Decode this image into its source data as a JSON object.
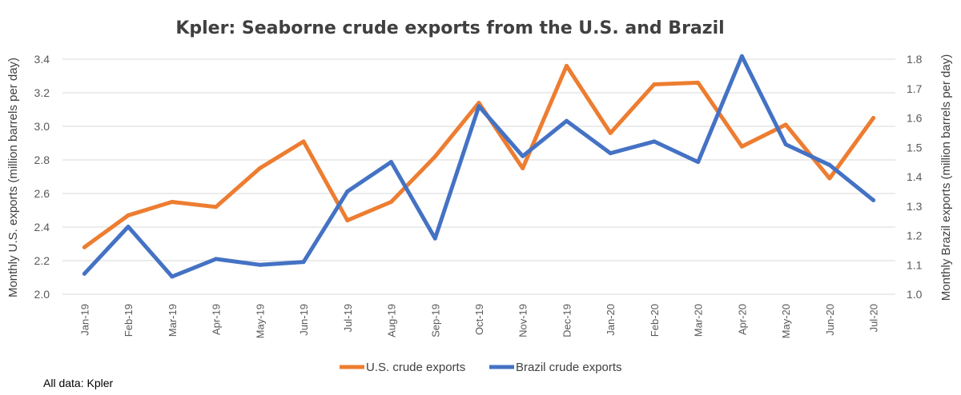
{
  "chart_data": {
    "type": "line",
    "title": "Kpler: Seaborne crude exports from the U.S. and Brazil",
    "source_note": "All data: Kpler",
    "categories": [
      "Jan-19",
      "Feb-19",
      "Mar-19",
      "Apr-19",
      "May-19",
      "Jun-19",
      "Jul-19",
      "Aug-19",
      "Sep-19",
      "Oct-19",
      "Nov-19",
      "Dec-19",
      "Jan-20",
      "Feb-20",
      "Mar-20",
      "Apr-20",
      "May-20",
      "Jun-20",
      "Jul-20"
    ],
    "y_left": {
      "label": "Monthly  U.S. exports (million barrels per day)",
      "lim": [
        2.0,
        3.4
      ],
      "ticks": [
        "2.0",
        "2.2",
        "2.4",
        "2.6",
        "2.8",
        "3.0",
        "3.2",
        "3.4"
      ]
    },
    "y_right": {
      "label": "Monthly  Brazil exports (million barrels per day)",
      "lim": [
        1.0,
        1.8
      ],
      "ticks": [
        "1.0",
        "1.1",
        "1.2",
        "1.3",
        "1.4",
        "1.5",
        "1.6",
        "1.7",
        "1.8"
      ]
    },
    "grid": true,
    "legend_position": "bottom",
    "series": [
      {
        "name": "U.S. crude exports",
        "axis": "left",
        "color": "#ed7d31",
        "values": [
          2.28,
          2.47,
          2.55,
          2.52,
          2.75,
          2.91,
          2.44,
          2.55,
          2.82,
          3.14,
          2.75,
          3.36,
          2.96,
          3.25,
          3.26,
          2.88,
          3.01,
          2.69,
          3.05
        ]
      },
      {
        "name": "Brazil crude exports",
        "axis": "right",
        "color": "#4472c4",
        "values": [
          1.07,
          1.23,
          1.06,
          1.12,
          1.1,
          1.11,
          1.35,
          1.45,
          1.19,
          1.64,
          1.47,
          1.59,
          1.48,
          1.52,
          1.45,
          1.81,
          1.51,
          1.44,
          1.32
        ]
      }
    ]
  }
}
